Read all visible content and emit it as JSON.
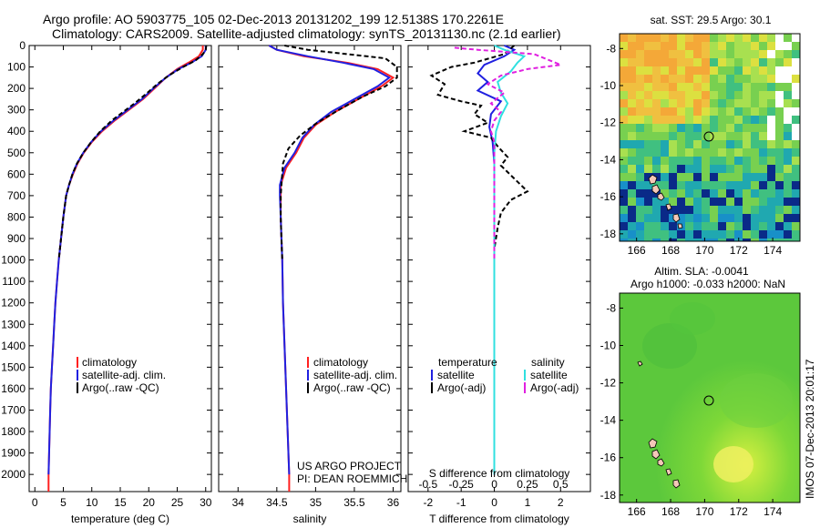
{
  "title": {
    "line1": "Argo profile: AO 5903775_105 02-Dec-2013 20131202_199 12.5138S 170.2261E",
    "line2": "Climatology: CARS2009. Satellite-adjusted climatology: synTS_20131130.nc (2.1d earlier)"
  },
  "colors": {
    "climatology": "#ff2020",
    "satellite": "#2020e0",
    "argo": "#000000",
    "sal_satellite": "#30e0e0",
    "sal_argo": "#e020e0"
  },
  "chart_data": [
    {
      "type": "line",
      "id": "temperature",
      "xlabel": "temperature (deg C)",
      "ylabel": "",
      "xlim": [
        -1,
        31
      ],
      "ylim": [
        2080,
        0
      ],
      "xticks": [
        "0",
        "5",
        "10",
        "15",
        "20",
        "25",
        "30"
      ],
      "xtick_values": [
        0,
        5,
        10,
        15,
        20,
        25,
        30
      ],
      "yticks": [
        "0",
        "100",
        "200",
        "300",
        "400",
        "500",
        "600",
        "700",
        "800",
        "900",
        "1000",
        "1100",
        "1200",
        "1300",
        "1400",
        "1500",
        "1600",
        "1700",
        "1800",
        "1900",
        "2000"
      ],
      "ytick_values": [
        0,
        100,
        200,
        300,
        400,
        500,
        600,
        700,
        800,
        900,
        1000,
        1100,
        1200,
        1300,
        1400,
        1500,
        1600,
        1700,
        1800,
        1900,
        2000
      ],
      "legend": [
        "climatology",
        "satellite-adj. clim.",
        "Argo(..raw -QC)"
      ],
      "legend_position": "lower-center",
      "series": [
        {
          "name": "climatology",
          "color": "#ff2020",
          "dash": "none",
          "points": [
            [
              29.5,
              0
            ],
            [
              29.5,
              20
            ],
            [
              28.8,
              50
            ],
            [
              27,
              80
            ],
            [
              25,
              110
            ],
            [
              23,
              150
            ],
            [
              21,
              200
            ],
            [
              19,
              250
            ],
            [
              16.5,
              300
            ],
            [
              14,
              350
            ],
            [
              11.8,
              400
            ],
            [
              10,
              450
            ],
            [
              8.6,
              500
            ],
            [
              7.5,
              550
            ],
            [
              6.7,
              600
            ],
            [
              6,
              650
            ],
            [
              5.5,
              700
            ],
            [
              5,
              800
            ],
            [
              4.6,
              900
            ],
            [
              4.2,
              1000
            ],
            [
              3.9,
              1100
            ],
            [
              3.6,
              1200
            ],
            [
              3.4,
              1300
            ],
            [
              3.2,
              1400
            ],
            [
              3,
              1500
            ],
            [
              2.8,
              1600
            ],
            [
              2.7,
              1700
            ],
            [
              2.6,
              1800
            ],
            [
              2.5,
              1900
            ],
            [
              2.4,
              2000
            ],
            [
              2.4,
              2080
            ]
          ]
        },
        {
          "name": "satellite",
          "color": "#2020e0",
          "dash": "none",
          "points": [
            [
              30,
              0
            ],
            [
              30,
              20
            ],
            [
              29.3,
              50
            ],
            [
              27.5,
              80
            ],
            [
              25.2,
              110
            ],
            [
              23,
              150
            ],
            [
              20.8,
              200
            ],
            [
              18.8,
              250
            ],
            [
              16.3,
              300
            ],
            [
              13.8,
              350
            ],
            [
              11.6,
              400
            ],
            [
              9.9,
              450
            ],
            [
              8.5,
              500
            ],
            [
              7.4,
              550
            ],
            [
              6.6,
              600
            ],
            [
              6,
              650
            ],
            [
              5.5,
              700
            ],
            [
              5,
              800
            ],
            [
              4.6,
              900
            ],
            [
              4.2,
              1000
            ],
            [
              3.9,
              1100
            ],
            [
              3.6,
              1200
            ],
            [
              3.4,
              1300
            ],
            [
              3.2,
              1400
            ],
            [
              3,
              1500
            ],
            [
              2.8,
              1600
            ],
            [
              2.7,
              1700
            ],
            [
              2.6,
              1800
            ],
            [
              2.5,
              1900
            ],
            [
              2.4,
              2000
            ]
          ]
        },
        {
          "name": "argo",
          "color": "#000000",
          "dash": "5,3",
          "points": [
            [
              30.1,
              0
            ],
            [
              30,
              20
            ],
            [
              29.5,
              40
            ],
            [
              28.2,
              70
            ],
            [
              26,
              100
            ],
            [
              23.5,
              140
            ],
            [
              21.5,
              180
            ],
            [
              19.8,
              220
            ],
            [
              17.5,
              270
            ],
            [
              15.5,
              310
            ],
            [
              13.5,
              350
            ],
            [
              11.5,
              400
            ],
            [
              9.9,
              450
            ],
            [
              8.5,
              500
            ],
            [
              7.4,
              550
            ],
            [
              6.6,
              600
            ],
            [
              6,
              650
            ],
            [
              5.5,
              700
            ],
            [
              5,
              800
            ],
            [
              4.6,
              900
            ],
            [
              4.2,
              1000
            ]
          ]
        }
      ]
    },
    {
      "type": "line",
      "id": "salinity",
      "xlabel": "salinity",
      "xlim": [
        33.75,
        36.1
      ],
      "ylim": [
        2080,
        0
      ],
      "xticks": [
        "34",
        "34.5",
        "35",
        "35.5",
        "36"
      ],
      "xtick_values": [
        34,
        34.5,
        35,
        35.5,
        36
      ],
      "legend": [
        "climatology",
        "satellite-adj. clim.",
        "Argo(..raw -QC)"
      ],
      "legend_position": "lower-center",
      "annotation": [
        "US ARGO PROJECT",
        "PI: DEAN ROEMMICH"
      ],
      "series": [
        {
          "name": "climatology",
          "color": "#ff2020",
          "dash": "none",
          "points": [
            [
              34.4,
              0
            ],
            [
              34.5,
              20
            ],
            [
              34.85,
              50
            ],
            [
              35.4,
              80
            ],
            [
              35.8,
              110
            ],
            [
              36,
              150
            ],
            [
              35.85,
              190
            ],
            [
              35.55,
              250
            ],
            [
              35.25,
              310
            ],
            [
              35.0,
              370
            ],
            [
              34.85,
              430
            ],
            [
              34.75,
              500
            ],
            [
              34.62,
              570
            ],
            [
              34.55,
              650
            ],
            [
              34.55,
              700
            ],
            [
              34.55,
              800
            ],
            [
              34.56,
              900
            ],
            [
              34.57,
              1000
            ],
            [
              34.58,
              1200
            ],
            [
              34.6,
              1400
            ],
            [
              34.62,
              1600
            ],
            [
              34.64,
              1800
            ],
            [
              34.66,
              2000
            ],
            [
              34.66,
              2080
            ]
          ]
        },
        {
          "name": "satellite",
          "color": "#2020e0",
          "dash": "none",
          "points": [
            [
              34.4,
              0
            ],
            [
              34.5,
              20
            ],
            [
              34.9,
              50
            ],
            [
              35.35,
              80
            ],
            [
              35.75,
              110
            ],
            [
              35.95,
              150
            ],
            [
              35.8,
              190
            ],
            [
              35.5,
              250
            ],
            [
              35.2,
              310
            ],
            [
              34.98,
              370
            ],
            [
              34.83,
              430
            ],
            [
              34.73,
              500
            ],
            [
              34.6,
              570
            ],
            [
              34.54,
              650
            ],
            [
              34.54,
              700
            ],
            [
              34.55,
              800
            ],
            [
              34.56,
              900
            ],
            [
              34.57,
              1000
            ],
            [
              34.58,
              1200
            ],
            [
              34.6,
              1400
            ],
            [
              34.62,
              1600
            ],
            [
              34.64,
              1800
            ],
            [
              34.66,
              2000
            ]
          ]
        },
        {
          "name": "argo",
          "color": "#000000",
          "dash": "5,3",
          "points": [
            [
              34.6,
              0
            ],
            [
              34.9,
              20
            ],
            [
              35.4,
              40
            ],
            [
              35.9,
              60
            ],
            [
              36.05,
              100
            ],
            [
              36.05,
              150
            ],
            [
              35.9,
              190
            ],
            [
              35.6,
              240
            ],
            [
              35.3,
              300
            ],
            [
              35.02,
              360
            ],
            [
              34.8,
              420
            ],
            [
              34.65,
              480
            ],
            [
              34.58,
              550
            ],
            [
              34.56,
              650
            ],
            [
              34.55,
              700
            ],
            [
              34.55,
              800
            ],
            [
              34.56,
              900
            ],
            [
              34.57,
              1000
            ]
          ]
        }
      ]
    },
    {
      "type": "line",
      "id": "difference",
      "xlabel": "T difference from climatology",
      "xlabel_top": "S difference from climatology",
      "xlim": [
        -2.6,
        2.9
      ],
      "ylim": [
        2080,
        0
      ],
      "xticks": [
        "-2",
        "-1",
        "0",
        "1",
        "2"
      ],
      "xtick_values": [
        -2,
        -1,
        0,
        1,
        2
      ],
      "sticks": [
        "-0.5",
        "-0.25",
        "0",
        "0.25",
        "0.5"
      ],
      "stick_values": [
        -2,
        -1,
        0,
        1,
        2
      ],
      "legend_groups": [
        {
          "header": "temperature",
          "items": [
            "satellite",
            "Argo(-adj)"
          ]
        },
        {
          "header": "salinity",
          "items": [
            "satellite",
            "Argo(-adj)"
          ]
        }
      ],
      "series": [
        {
          "name": "T satellite",
          "color": "#2020e0",
          "dash": "none",
          "points": [
            [
              0.3,
              0
            ],
            [
              0.6,
              20
            ],
            [
              0.3,
              50
            ],
            [
              -0.3,
              90
            ],
            [
              -0.5,
              130
            ],
            [
              -0.2,
              170
            ],
            [
              -0.5,
              210
            ],
            [
              0.2,
              260
            ],
            [
              -0.1,
              320
            ],
            [
              -0.15,
              380
            ],
            [
              -0.05,
              450
            ],
            [
              0,
              550
            ],
            [
              0,
              700
            ],
            [
              0,
              1000
            ],
            [
              0,
              1500
            ],
            [
              0,
              2000
            ]
          ]
        },
        {
          "name": "T argo",
          "color": "#000000",
          "dash": "5,3",
          "points": [
            [
              0.6,
              0
            ],
            [
              0.3,
              40
            ],
            [
              -0.6,
              80
            ],
            [
              -1.3,
              100
            ],
            [
              -1.9,
              140
            ],
            [
              -1.5,
              180
            ],
            [
              -1.7,
              230
            ],
            [
              -1,
              260
            ],
            [
              -0.4,
              280
            ],
            [
              -0.6,
              320
            ],
            [
              -0.2,
              360
            ],
            [
              -0.9,
              400
            ],
            [
              -0.1,
              430
            ],
            [
              0.1,
              470
            ],
            [
              0.4,
              520
            ],
            [
              0.2,
              560
            ],
            [
              0.6,
              620
            ],
            [
              1,
              680
            ],
            [
              0.5,
              720
            ],
            [
              0.2,
              780
            ],
            [
              0.1,
              850
            ],
            [
              0,
              950
            ],
            [
              0,
              1000
            ]
          ]
        },
        {
          "name": "S satellite",
          "color": "#30e0e0",
          "dash": "none",
          "points": [
            [
              0,
              0
            ],
            [
              0.3,
              20
            ],
            [
              0.9,
              50
            ],
            [
              0.7,
              80
            ],
            [
              0.5,
              120
            ],
            [
              0.1,
              170
            ],
            [
              0.2,
              220
            ],
            [
              0.4,
              270
            ],
            [
              0.2,
              330
            ],
            [
              0.05,
              400
            ],
            [
              0,
              500
            ],
            [
              0,
              800
            ],
            [
              0,
              1200
            ],
            [
              0,
              1600
            ],
            [
              0,
              2000
            ]
          ]
        },
        {
          "name": "S argo",
          "color": "#e020e0",
          "dash": "5,3",
          "points": [
            [
              -1.2,
              10
            ],
            [
              -0.5,
              20
            ],
            [
              1.2,
              40
            ],
            [
              2,
              90
            ],
            [
              1,
              110
            ],
            [
              0.2,
              140
            ],
            [
              -0.2,
              180
            ],
            [
              0.3,
              220
            ],
            [
              -0.1,
              270
            ],
            [
              0.2,
              310
            ],
            [
              0,
              350
            ],
            [
              -0.1,
              400
            ],
            [
              0,
              450
            ],
            [
              0,
              600
            ],
            [
              0,
              800
            ],
            [
              0,
              1000
            ]
          ]
        }
      ]
    }
  ],
  "maps": {
    "sst": {
      "title": "sat. SST: 29.5 Argo: 30.1",
      "xticks": [
        "166",
        "168",
        "170",
        "172",
        "174"
      ],
      "yticks": [
        "-8",
        "-10",
        "-12",
        "-14",
        "-16",
        "-18"
      ],
      "marker": {
        "lon": 170.2,
        "lat": -12.5
      }
    },
    "sla": {
      "title1": "Altim. SLA: -0.0041",
      "title2": "Argo h1000: -0.033 h2000: NaN",
      "xticks": [
        "166",
        "168",
        "170",
        "172",
        "174"
      ],
      "yticks": [
        "-8",
        "-10",
        "-12",
        "-14",
        "-16",
        "-18"
      ],
      "marker": {
        "lon": 170.2,
        "lat": -12.5
      }
    }
  },
  "side_label": "IMOS 07-Dec-2013 20:01:17"
}
